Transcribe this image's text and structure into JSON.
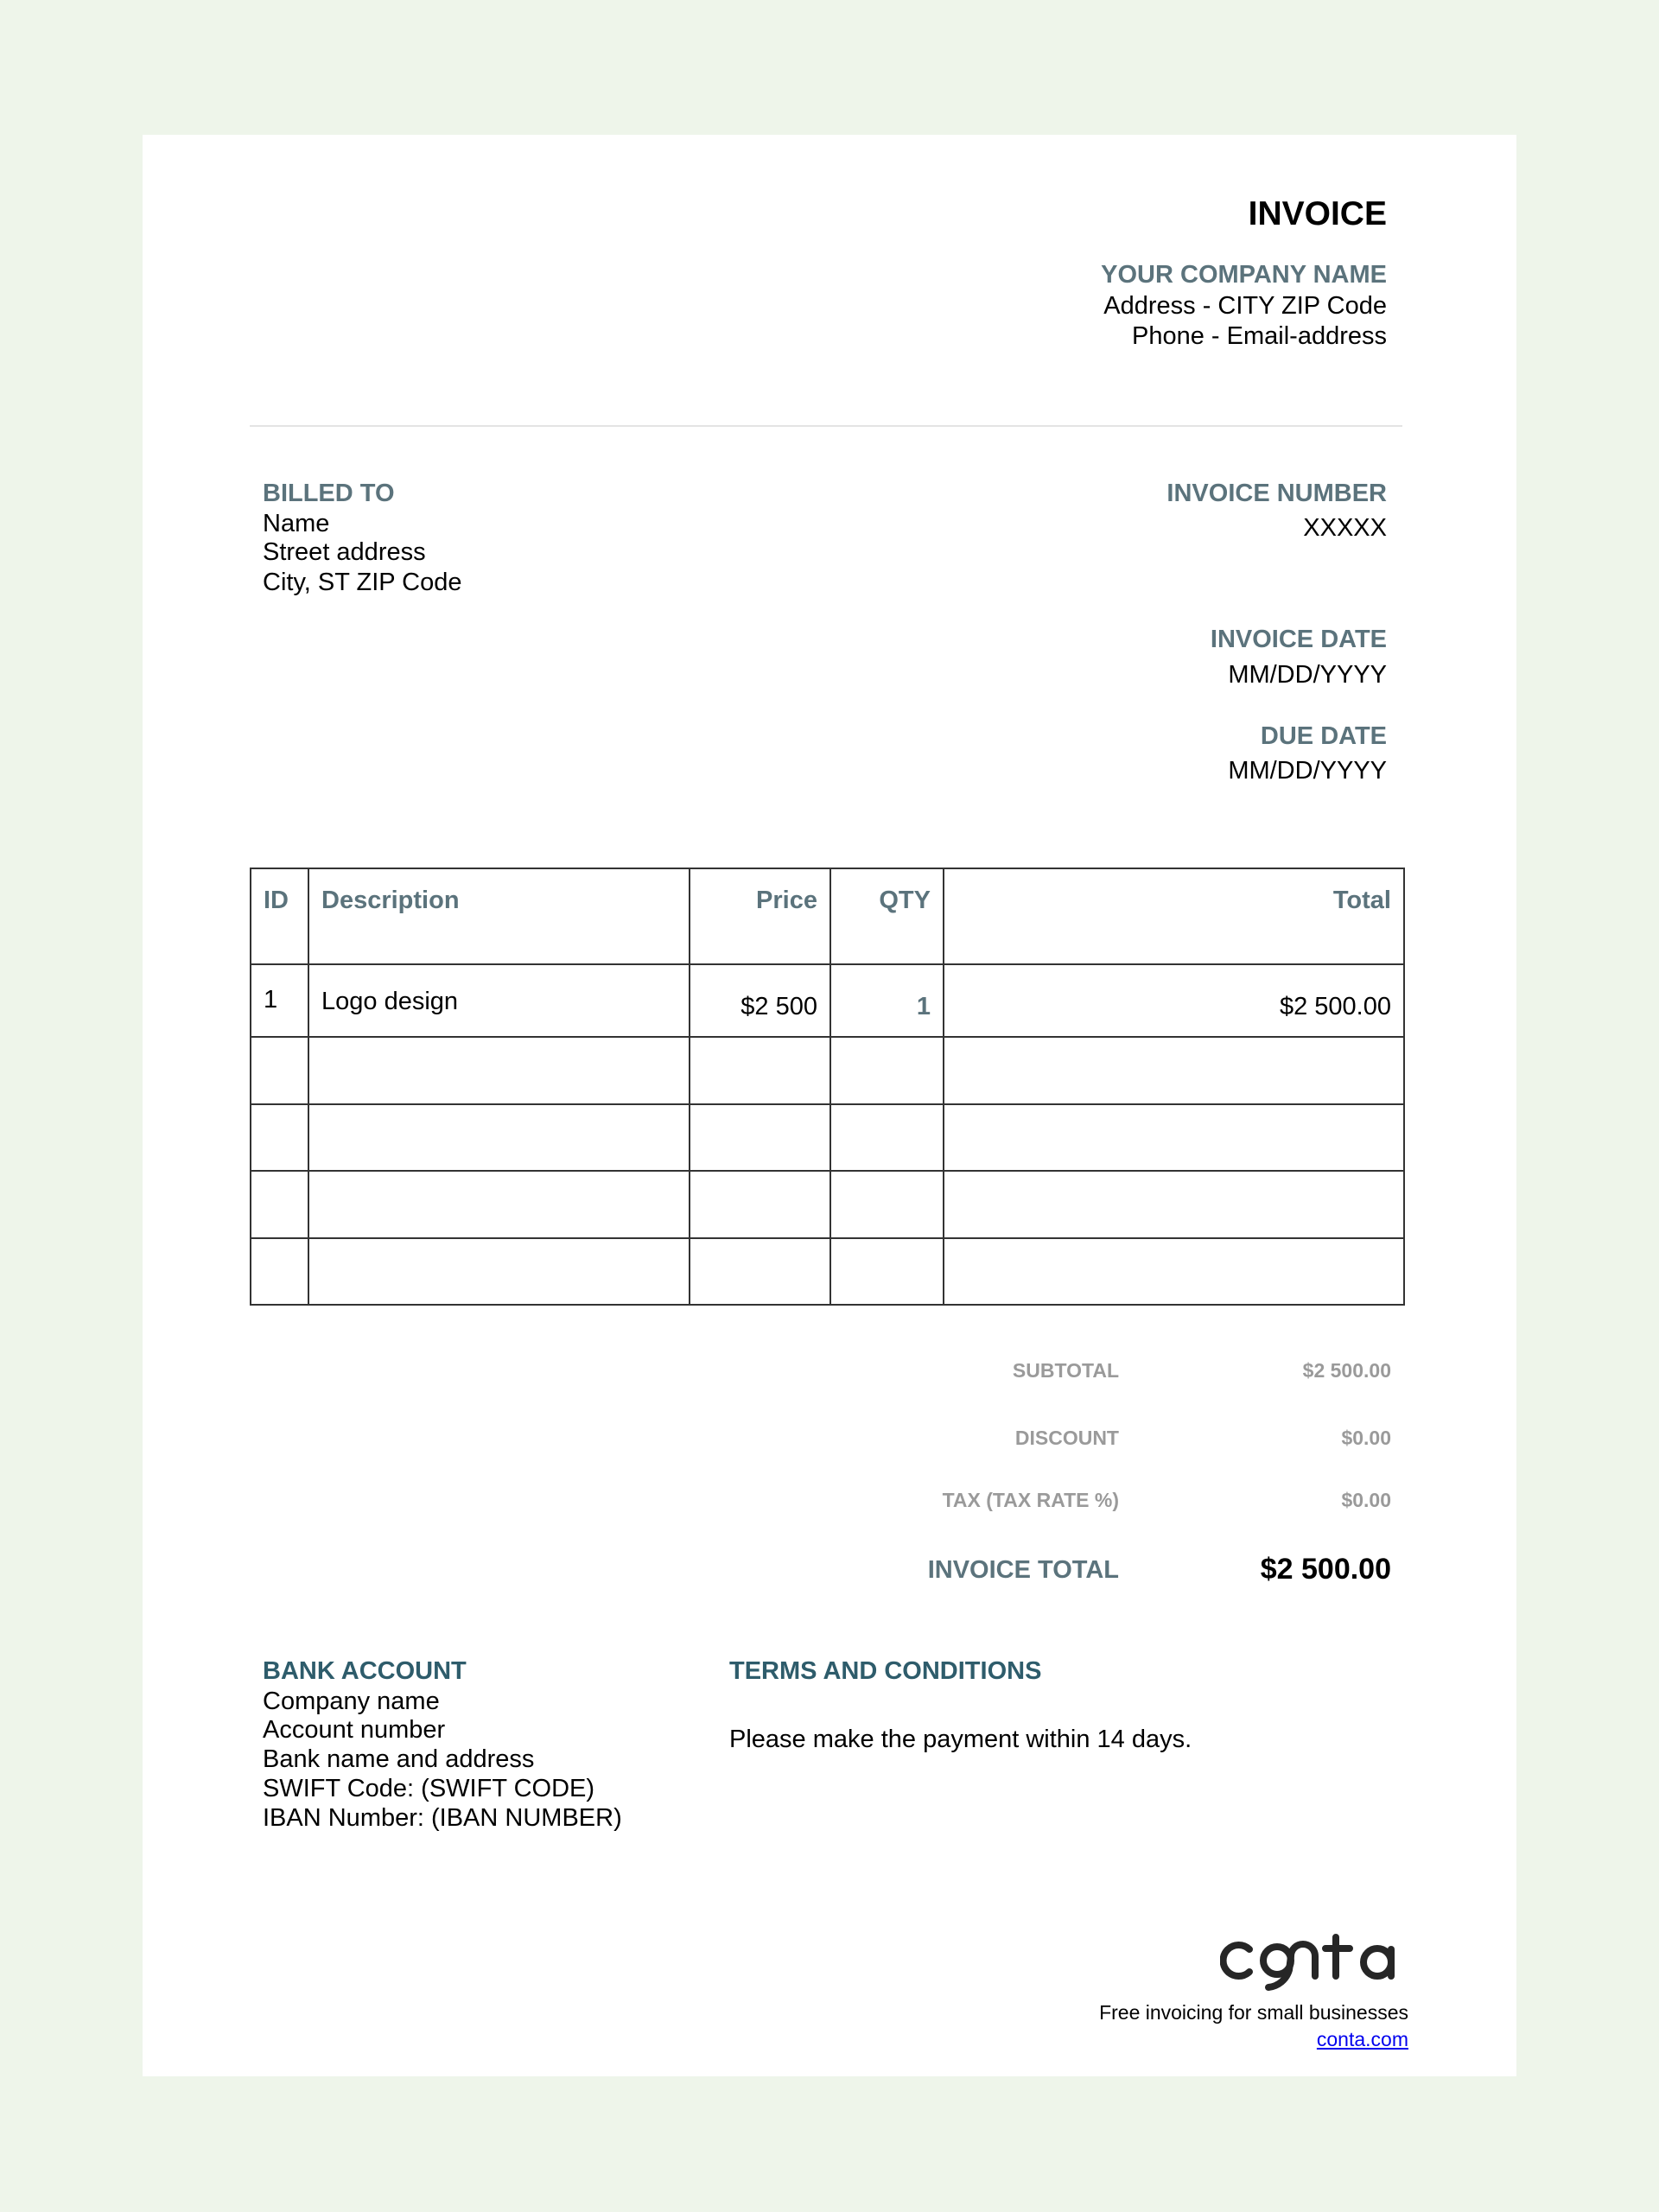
{
  "header": {
    "title": "INVOICE",
    "company_name": "YOUR COMPANY NAME",
    "address": "Address - CITY ZIP Code",
    "contact": "Phone - Email-address"
  },
  "billed_to": {
    "label": "BILLED TO",
    "lines": [
      "Name",
      "Street address",
      "City, ST ZIP Code"
    ]
  },
  "invoice_meta": {
    "number_label": "INVOICE NUMBER",
    "number": "XXXXX",
    "date_label": "INVOICE DATE",
    "date": "MM/DD/YYYY",
    "due_label": "DUE DATE",
    "due": "MM/DD/YYYY"
  },
  "table": {
    "headers": [
      "ID",
      "Description",
      "Price",
      "QTY",
      "Total"
    ],
    "rows": [
      [
        "1",
        "Logo design",
        "$2 500",
        "1",
        "$2 500.00"
      ],
      [
        "",
        "",
        "",
        "",
        ""
      ],
      [
        "",
        "",
        "",
        "",
        ""
      ],
      [
        "",
        "",
        "",
        "",
        ""
      ],
      [
        "",
        "",
        "",
        "",
        ""
      ]
    ]
  },
  "totals": {
    "subtotal_label": "SUBTOTAL",
    "subtotal": "$2 500.00",
    "discount_label": "DISCOUNT",
    "discount": "$0.00",
    "tax_label": "TAX (TAX RATE %)",
    "tax": "$0.00",
    "total_label": "INVOICE TOTAL",
    "total": "$2 500.00"
  },
  "bank": {
    "label": "BANK ACCOUNT",
    "lines": [
      "Company name",
      "Account number",
      "Bank name and address",
      "SWIFT Code: (SWIFT CODE)",
      "IBAN Number: (IBAN NUMBER)"
    ]
  },
  "terms": {
    "label": "TERMS AND CONDITIONS",
    "text": "Please make the payment within 14 days."
  },
  "footer": {
    "logo_text": "conta",
    "tagline": "Free invoicing for small businesses",
    "link": "conta.com",
    "link_color": "#0000ee"
  },
  "colors": {
    "background": "#eef5ea",
    "heading": "#5b737c",
    "bank_heading": "#2e5c6b"
  }
}
